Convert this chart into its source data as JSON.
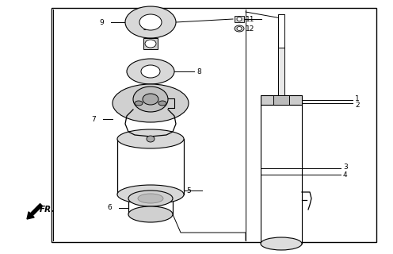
{
  "bg_color": "#ffffff",
  "lc": "#000000",
  "gray1": "#c8c8c8",
  "gray2": "#e0e0e0",
  "gray3": "#aaaaaa",
  "figsize": [
    4.96,
    3.2
  ],
  "dpi": 100
}
